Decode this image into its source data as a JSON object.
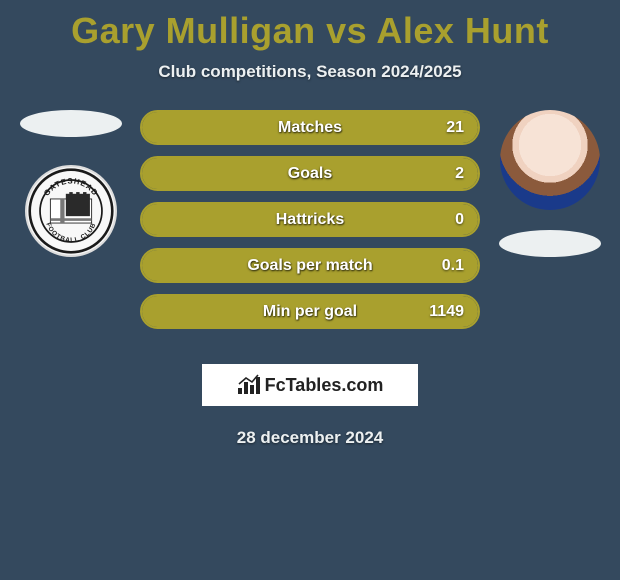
{
  "header": {
    "title": "Gary Mulligan vs Alex Hunt",
    "title_color": "#a9a02e",
    "title_fontsize": 36,
    "subtitle": "Club competitions, Season 2024/2025",
    "subtitle_color": "#ecf0f1"
  },
  "background_color": "#34495e",
  "players": {
    "left": {
      "name": "Gary Mulligan",
      "badge": "gateshead-fc"
    },
    "right": {
      "name": "Alex Hunt",
      "photo": "player-headshot"
    }
  },
  "ellipse_color": "#ecf0f1",
  "bar_style": {
    "fill_color": "#a9a02e",
    "border_color": "#a9a02e",
    "text_color": "#ffffff",
    "height": 35,
    "radius": 18,
    "border_width": 2
  },
  "stats": [
    {
      "label": "Matches",
      "left_value": "",
      "right_value": "21",
      "left_pct": 0,
      "right_pct": 100
    },
    {
      "label": "Goals",
      "left_value": "",
      "right_value": "2",
      "left_pct": 0,
      "right_pct": 100
    },
    {
      "label": "Hattricks",
      "left_value": "",
      "right_value": "0",
      "left_pct": 0,
      "right_pct": 100
    },
    {
      "label": "Goals per match",
      "left_value": "",
      "right_value": "0.1",
      "left_pct": 0,
      "right_pct": 100
    },
    {
      "label": "Min per goal",
      "left_value": "",
      "right_value": "1149",
      "left_pct": 0,
      "right_pct": 100
    }
  ],
  "brand": {
    "name": "FcTables.com",
    "icon": "bars-chart"
  },
  "date": "28 december 2024"
}
